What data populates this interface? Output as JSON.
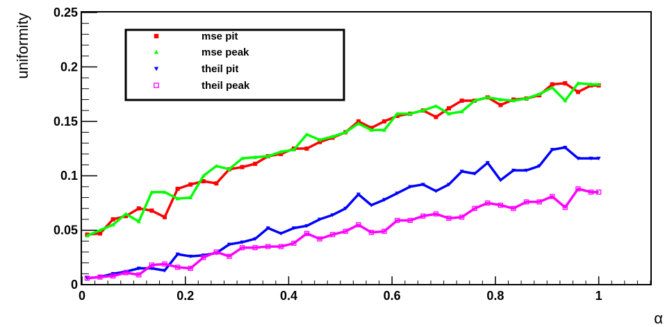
{
  "chart_data": {
    "type": "line",
    "title": "",
    "xlabel": "α",
    "ylabel": "uniformity",
    "xlim": [
      0,
      1.1
    ],
    "ylim": [
      0,
      0.25
    ],
    "grid": false,
    "legend_position": "top-left",
    "x_ticks": [
      {
        "v": 0,
        "label": "0"
      },
      {
        "v": 0.2,
        "label": "0.2"
      },
      {
        "v": 0.4,
        "label": "0.4"
      },
      {
        "v": 0.6,
        "label": "0.6"
      },
      {
        "v": 0.8,
        "label": "0.8"
      },
      {
        "v": 1,
        "label": "1"
      }
    ],
    "y_ticks": [
      {
        "v": 0,
        "label": "0"
      },
      {
        "v": 0.05,
        "label": "0.05"
      },
      {
        "v": 0.1,
        "label": "0.1"
      },
      {
        "v": 0.15,
        "label": "0.15"
      },
      {
        "v": 0.2,
        "label": "0.2"
      },
      {
        "v": 0.25,
        "label": "0.25"
      }
    ],
    "x": [
      0.01,
      0.035,
      0.06,
      0.085,
      0.11,
      0.135,
      0.16,
      0.185,
      0.21,
      0.235,
      0.26,
      0.285,
      0.31,
      0.335,
      0.36,
      0.385,
      0.41,
      0.435,
      0.46,
      0.485,
      0.51,
      0.535,
      0.56,
      0.585,
      0.61,
      0.635,
      0.66,
      0.685,
      0.71,
      0.735,
      0.76,
      0.785,
      0.81,
      0.835,
      0.86,
      0.885,
      0.91,
      0.935,
      0.96,
      0.985,
      1.0
    ],
    "series": [
      {
        "name": "mse pit",
        "color": "#ff0000",
        "marker": "square-filled",
        "values": [
          0.046,
          0.047,
          0.06,
          0.063,
          0.07,
          0.068,
          0.062,
          0.088,
          0.092,
          0.095,
          0.093,
          0.106,
          0.108,
          0.111,
          0.118,
          0.12,
          0.125,
          0.125,
          0.131,
          0.135,
          0.14,
          0.15,
          0.144,
          0.15,
          0.155,
          0.157,
          0.16,
          0.154,
          0.162,
          0.169,
          0.169,
          0.172,
          0.165,
          0.17,
          0.171,
          0.174,
          0.184,
          0.185,
          0.177,
          0.183,
          0.183
        ]
      },
      {
        "name": "mse peak",
        "color": "#00ff00",
        "marker": "triangle-up",
        "values": [
          0.045,
          0.05,
          0.055,
          0.065,
          0.058,
          0.085,
          0.085,
          0.079,
          0.08,
          0.1,
          0.109,
          0.106,
          0.116,
          0.117,
          0.118,
          0.122,
          0.124,
          0.138,
          0.133,
          0.136,
          0.14,
          0.148,
          0.142,
          0.142,
          0.157,
          0.157,
          0.16,
          0.164,
          0.157,
          0.159,
          0.169,
          0.172,
          0.17,
          0.169,
          0.171,
          0.175,
          0.181,
          0.169,
          0.185,
          0.184,
          0.184
        ]
      },
      {
        "name": "theil pit",
        "color": "#0000ff",
        "marker": "triangle-down",
        "values": [
          0.006,
          0.007,
          0.01,
          0.012,
          0.015,
          0.015,
          0.013,
          0.028,
          0.026,
          0.027,
          0.029,
          0.037,
          0.039,
          0.042,
          0.052,
          0.047,
          0.052,
          0.054,
          0.06,
          0.064,
          0.07,
          0.083,
          0.073,
          0.078,
          0.084,
          0.09,
          0.092,
          0.086,
          0.092,
          0.104,
          0.102,
          0.112,
          0.096,
          0.105,
          0.105,
          0.109,
          0.124,
          0.126,
          0.116,
          0.116,
          0.116
        ]
      },
      {
        "name": "theil peak",
        "color": "#ff00ff",
        "marker": "square-open",
        "values": [
          0.006,
          0.007,
          0.008,
          0.011,
          0.009,
          0.018,
          0.019,
          0.016,
          0.015,
          0.025,
          0.03,
          0.026,
          0.034,
          0.034,
          0.035,
          0.035,
          0.038,
          0.047,
          0.042,
          0.046,
          0.049,
          0.055,
          0.048,
          0.049,
          0.059,
          0.059,
          0.063,
          0.065,
          0.061,
          0.062,
          0.07,
          0.075,
          0.073,
          0.07,
          0.076,
          0.076,
          0.081,
          0.071,
          0.088,
          0.085,
          0.085
        ]
      }
    ]
  }
}
